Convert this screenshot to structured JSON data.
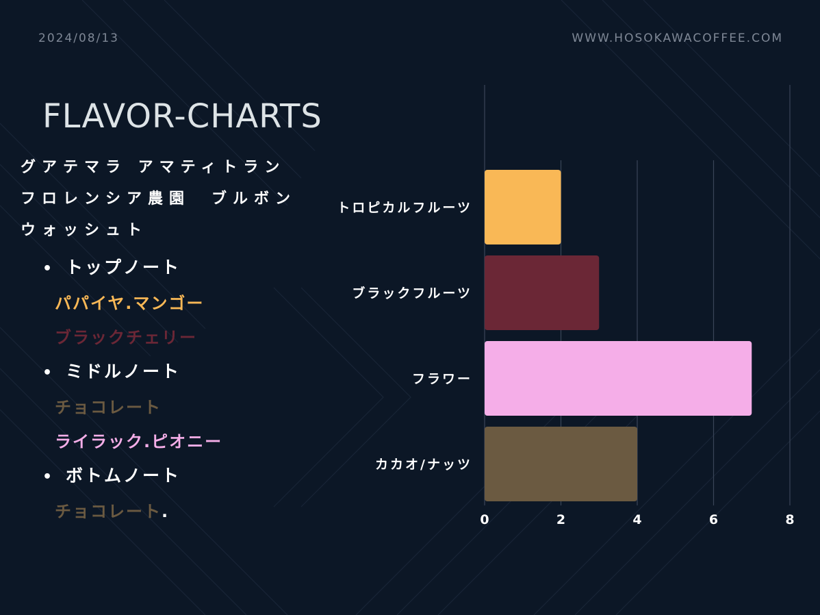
{
  "header": {
    "date": "2024/08/13",
    "website": "WWW.HOSOKAWACOFFEE.COM"
  },
  "title": "FLAVOR-CHARTS",
  "coffee": {
    "line1": "グアテマラ アマティトラン",
    "line2": "フロレンシア農園　ブルボン",
    "line3": "ウォッシュト"
  },
  "notes": {
    "top": {
      "heading": "トップノート",
      "items": [
        {
          "text": "パパイヤ.マンゴー",
          "color": "#f9b856"
        },
        {
          "text": "ブラックチェリー",
          "color": "#6b2736"
        }
      ]
    },
    "middle": {
      "heading": "ミドルノート",
      "items": [
        {
          "text": "チョコレート",
          "color": "#6b5a41"
        },
        {
          "text": "ライラック.ピオニー",
          "color": "#f5aee8"
        }
      ]
    },
    "bottom": {
      "heading": "ボトムノート",
      "items": [
        {
          "text": "チョコレート",
          "color": "#6b5a41",
          "tail": "."
        }
      ]
    }
  },
  "colors": {
    "background": "#0c1726"
  },
  "chart_data": {
    "type": "bar",
    "orientation": "horizontal",
    "categories": [
      "トロピカルフルーツ",
      "ブラックフルーツ",
      "フラワー",
      "カカオ/ナッツ"
    ],
    "values": [
      2,
      3,
      7,
      4
    ],
    "colors": [
      "#f9b856",
      "#6b2736",
      "#f5aee8",
      "#6b5a41"
    ],
    "xlim": [
      0,
      8
    ],
    "xticks": [
      0,
      2,
      4,
      6,
      8
    ],
    "grid": true,
    "title": "",
    "xlabel": "",
    "ylabel": ""
  }
}
